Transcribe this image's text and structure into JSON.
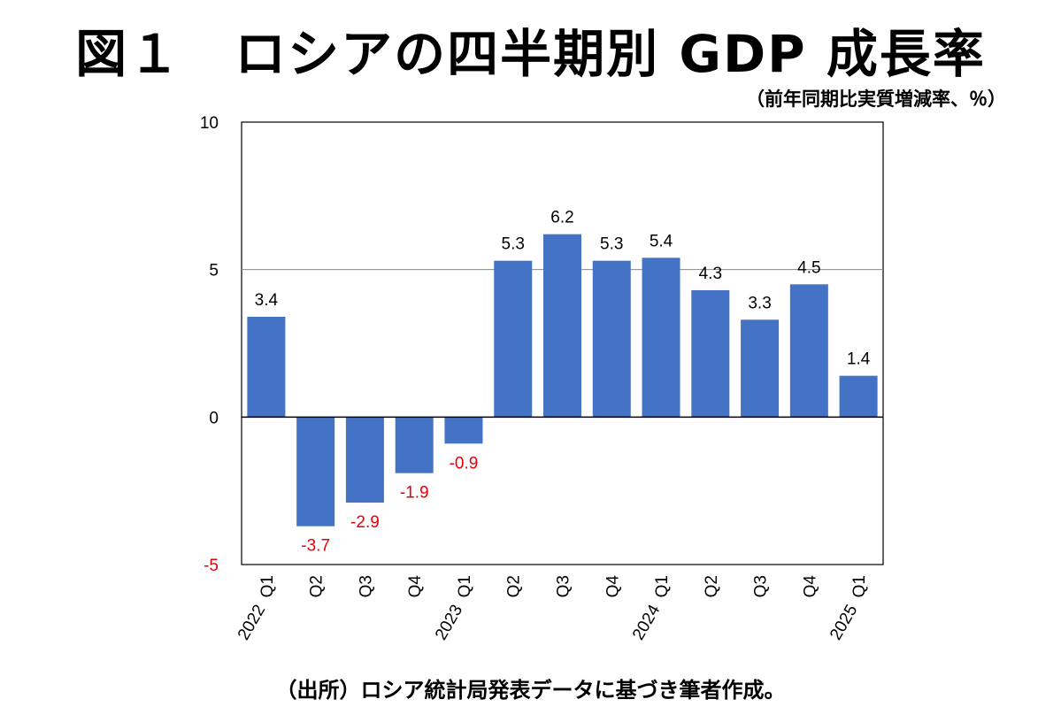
{
  "title": "図１　ロシアの四半期別 GDP 成長率",
  "unit_note": "（前年同期比実質増減率、％）",
  "source": "（出所）ロシア統計局発表データに基づき筆者作成。",
  "colors": {
    "bar": "#4472C4",
    "negative_label": "#E8000B",
    "positive_label": "#000000"
  },
  "chart_data": {
    "type": "bar",
    "categories": [
      "Q1",
      "Q2",
      "Q3",
      "Q4",
      "Q1",
      "Q2",
      "Q3",
      "Q4",
      "Q1",
      "Q2",
      "Q3",
      "Q4",
      "Q1"
    ],
    "year_labels": [
      "2022",
      "",
      "",
      "",
      "2023",
      "",
      "",
      "",
      "2024",
      "",
      "",
      "",
      "2025"
    ],
    "values": [
      3.4,
      -3.7,
      -2.9,
      -1.9,
      -0.9,
      5.3,
      6.2,
      5.3,
      5.4,
      4.3,
      3.3,
      4.5,
      1.4
    ],
    "ylim": [
      -5,
      10
    ],
    "yticks": [
      "10",
      "5",
      "0",
      "-5"
    ],
    "ytick_values": [
      10,
      5,
      0,
      -5
    ],
    "gridlines": [
      5
    ],
    "title": "",
    "xlabel": "",
    "ylabel": ""
  }
}
